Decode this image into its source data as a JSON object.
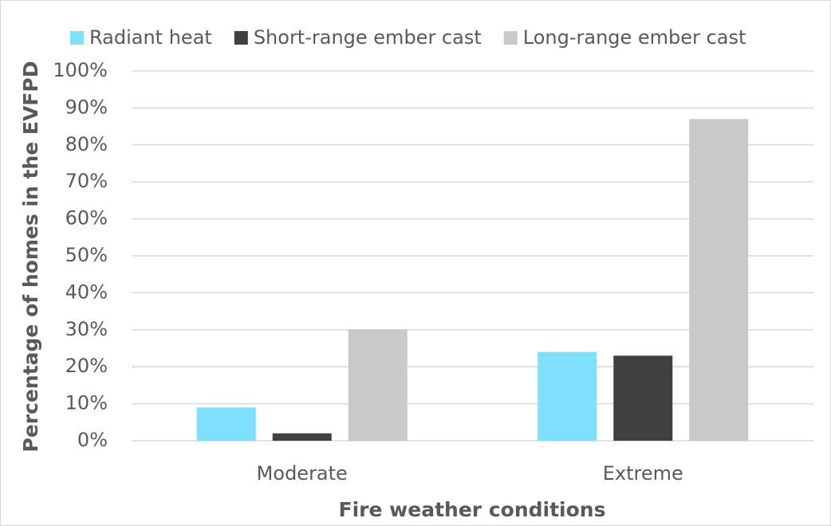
{
  "chart_data": {
    "type": "bar",
    "x_label": "Fire weather conditions",
    "y_label": "Percentage of homes in the EVFPD",
    "categories": [
      "Moderate",
      "Extreme"
    ],
    "series": [
      {
        "name": "Radiant heat",
        "color": "#7fe0fd",
        "values": [
          9,
          24
        ]
      },
      {
        "name": "Short-range ember cast",
        "color": "#404040",
        "values": [
          2,
          23
        ]
      },
      {
        "name": "Long-range ember cast",
        "color": "#c9c9c9",
        "values": [
          30,
          87
        ]
      }
    ],
    "ylim": [
      0,
      100
    ],
    "yticks": [
      {
        "value": 0,
        "label": "0%"
      },
      {
        "value": 10,
        "label": "10%"
      },
      {
        "value": 20,
        "label": "20%"
      },
      {
        "value": 30,
        "label": "30%"
      },
      {
        "value": 40,
        "label": "40%"
      },
      {
        "value": 50,
        "label": "50%"
      },
      {
        "value": 60,
        "label": "60%"
      },
      {
        "value": 70,
        "label": "70%"
      },
      {
        "value": 80,
        "label": "80%"
      },
      {
        "value": 90,
        "label": "90%"
      },
      {
        "value": 100,
        "label": "100%"
      }
    ],
    "grid": true,
    "legend": "top"
  }
}
